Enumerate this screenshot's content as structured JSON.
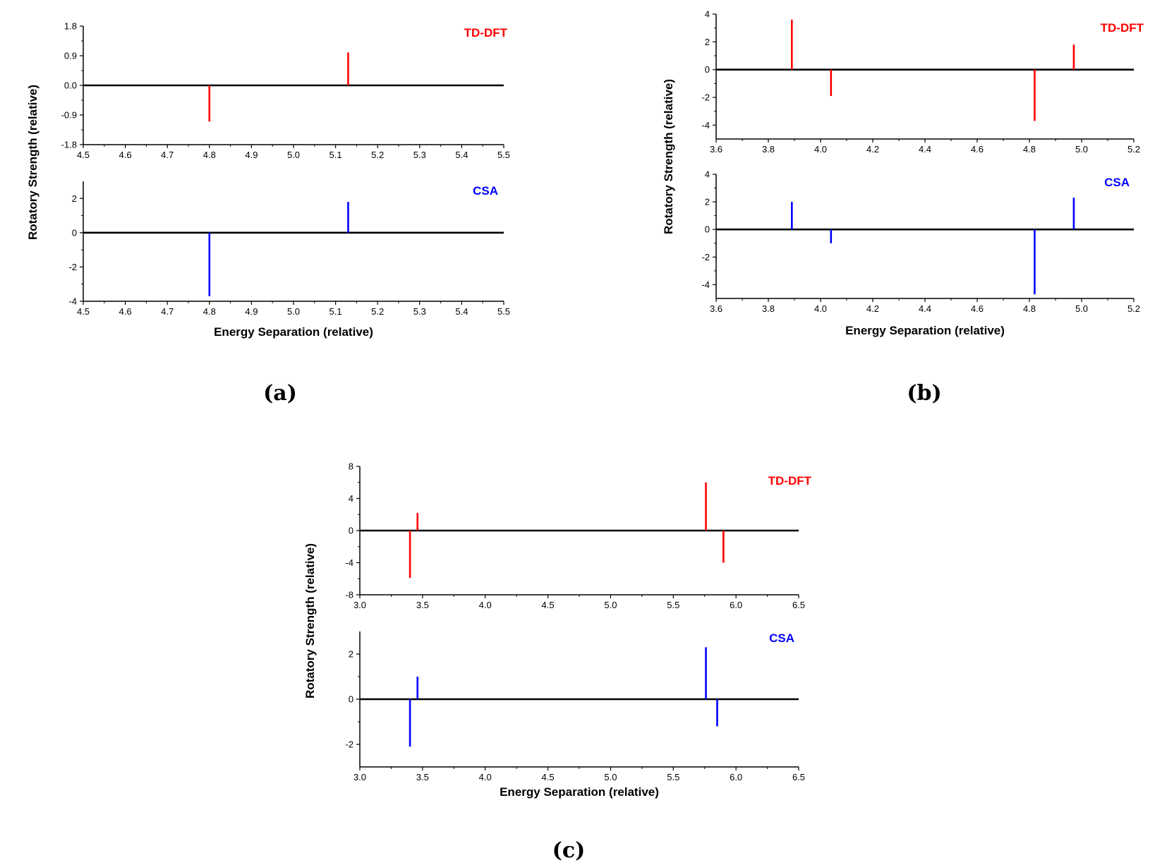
{
  "colors": {
    "tddft": "#ff0000",
    "csa": "#0000ff",
    "axis": "#000000"
  },
  "chart_data": [
    {
      "panel": "a",
      "caption": "(a)",
      "xlabel": "Energy Separation (relative)",
      "ylabel": "Rotatory Strength (relative)",
      "subplots": [
        {
          "type": "bar",
          "series_name": "TD-DFT",
          "color": "#ff0000",
          "xlim": [
            4.5,
            5.5
          ],
          "xticks": [
            4.5,
            4.6,
            4.7,
            4.8,
            4.9,
            5.0,
            5.1,
            5.2,
            5.3,
            5.4,
            5.5
          ],
          "xtick_labels": [
            "4.5",
            "4.6",
            "4.7",
            "4.8",
            "4.9",
            "5.0",
            "5.1",
            "5.2",
            "5.3",
            "5.4",
            "5.5"
          ],
          "ylim": [
            -1.8,
            1.8
          ],
          "yticks": [
            -1.8,
            -0.9,
            0.0,
            0.9,
            1.8
          ],
          "ytick_labels": [
            "-1.8",
            "-0.9",
            "0.0",
            "0.9",
            "1.8"
          ],
          "x": [
            4.8,
            5.13
          ],
          "values": [
            -1.1,
            1.0
          ]
        },
        {
          "type": "bar",
          "series_name": "CSA",
          "color": "#0000ff",
          "xlim": [
            4.5,
            5.5
          ],
          "xticks": [
            4.5,
            4.6,
            4.7,
            4.8,
            4.9,
            5.0,
            5.1,
            5.2,
            5.3,
            5.4,
            5.5
          ],
          "xtick_labels": [
            "4.5",
            "4.6",
            "4.7",
            "4.8",
            "4.9",
            "5.0",
            "5.1",
            "5.2",
            "5.3",
            "5.4",
            "5.5"
          ],
          "ylim": [
            -4,
            3
          ],
          "yticks": [
            -4,
            -2,
            0,
            2
          ],
          "ytick_labels": [
            "-4",
            "-2",
            "0",
            "2"
          ],
          "x": [
            4.8,
            5.13
          ],
          "values": [
            -3.7,
            1.8
          ]
        }
      ]
    },
    {
      "panel": "b",
      "caption": "(b)",
      "xlabel": "Energy Separation (relative)",
      "ylabel": "Rotatory Strength (relative)",
      "subplots": [
        {
          "type": "bar",
          "series_name": "TD-DFT",
          "color": "#ff0000",
          "xlim": [
            3.6,
            5.2
          ],
          "xticks": [
            3.6,
            3.8,
            4.0,
            4.2,
            4.4,
            4.6,
            4.8,
            5.0,
            5.2
          ],
          "xtick_labels": [
            "3.6",
            "3.8",
            "4.0",
            "4.2",
            "4.4",
            "4.6",
            "4.8",
            "5.0",
            "5.2"
          ],
          "ylim": [
            -5,
            4
          ],
          "yticks": [
            -4,
            -2,
            0,
            2,
            4
          ],
          "ytick_labels": [
            "-4",
            "-2",
            "0",
            "2",
            "4"
          ],
          "x": [
            3.89,
            4.04,
            4.82,
            4.97
          ],
          "values": [
            3.6,
            -1.9,
            -3.7,
            1.8
          ]
        },
        {
          "type": "bar",
          "series_name": "CSA",
          "color": "#0000ff",
          "xlim": [
            3.6,
            5.2
          ],
          "xticks": [
            3.6,
            3.8,
            4.0,
            4.2,
            4.4,
            4.6,
            4.8,
            5.0,
            5.2
          ],
          "xtick_labels": [
            "3.6",
            "3.8",
            "4.0",
            "4.2",
            "4.4",
            "4.6",
            "4.8",
            "5.0",
            "5.2"
          ],
          "ylim": [
            -5,
            4
          ],
          "yticks": [
            -4,
            -2,
            0,
            2,
            4
          ],
          "ytick_labels": [
            "-4",
            "-2",
            "0",
            "2",
            "4"
          ],
          "x": [
            3.89,
            4.04,
            4.82,
            4.97
          ],
          "values": [
            2.0,
            -1.0,
            -4.7,
            2.3
          ]
        }
      ]
    },
    {
      "panel": "c",
      "caption": "(c)",
      "xlabel": "Energy Separation (relative)",
      "ylabel": "Rotatory Strength (relative)",
      "subplots": [
        {
          "type": "bar",
          "series_name": "TD-DFT",
          "color": "#ff0000",
          "xlim": [
            3.0,
            6.5
          ],
          "xticks": [
            3.0,
            3.5,
            4.0,
            4.5,
            5.0,
            5.5,
            6.0,
            6.5
          ],
          "xtick_labels": [
            "3.0",
            "3.5",
            "4.0",
            "4.5",
            "5.0",
            "5.5",
            "6.0",
            "6.5"
          ],
          "ylim": [
            -8,
            8
          ],
          "yticks": [
            -8,
            -4,
            0,
            4,
            8
          ],
          "ytick_labels": [
            "-8",
            "-4",
            "0",
            "4",
            "8"
          ],
          "x": [
            3.4,
            3.46,
            5.76,
            5.9
          ],
          "values": [
            -5.9,
            2.2,
            6.0,
            -4.0
          ]
        },
        {
          "type": "bar",
          "series_name": "CSA",
          "color": "#0000ff",
          "xlim": [
            3.0,
            6.5
          ],
          "xticks": [
            3.0,
            3.5,
            4.0,
            4.5,
            5.0,
            5.5,
            6.0,
            6.5
          ],
          "xtick_labels": [
            "3.0",
            "3.5",
            "4.0",
            "4.5",
            "5.0",
            "5.5",
            "6.0",
            "6.5"
          ],
          "ylim": [
            -3,
            3
          ],
          "yticks": [
            -2,
            0,
            2
          ],
          "ytick_labels": [
            "-2",
            "0",
            "2"
          ],
          "x": [
            3.4,
            3.46,
            5.76,
            5.85
          ],
          "values": [
            -2.1,
            1.0,
            2.3,
            -1.2
          ]
        }
      ]
    }
  ]
}
